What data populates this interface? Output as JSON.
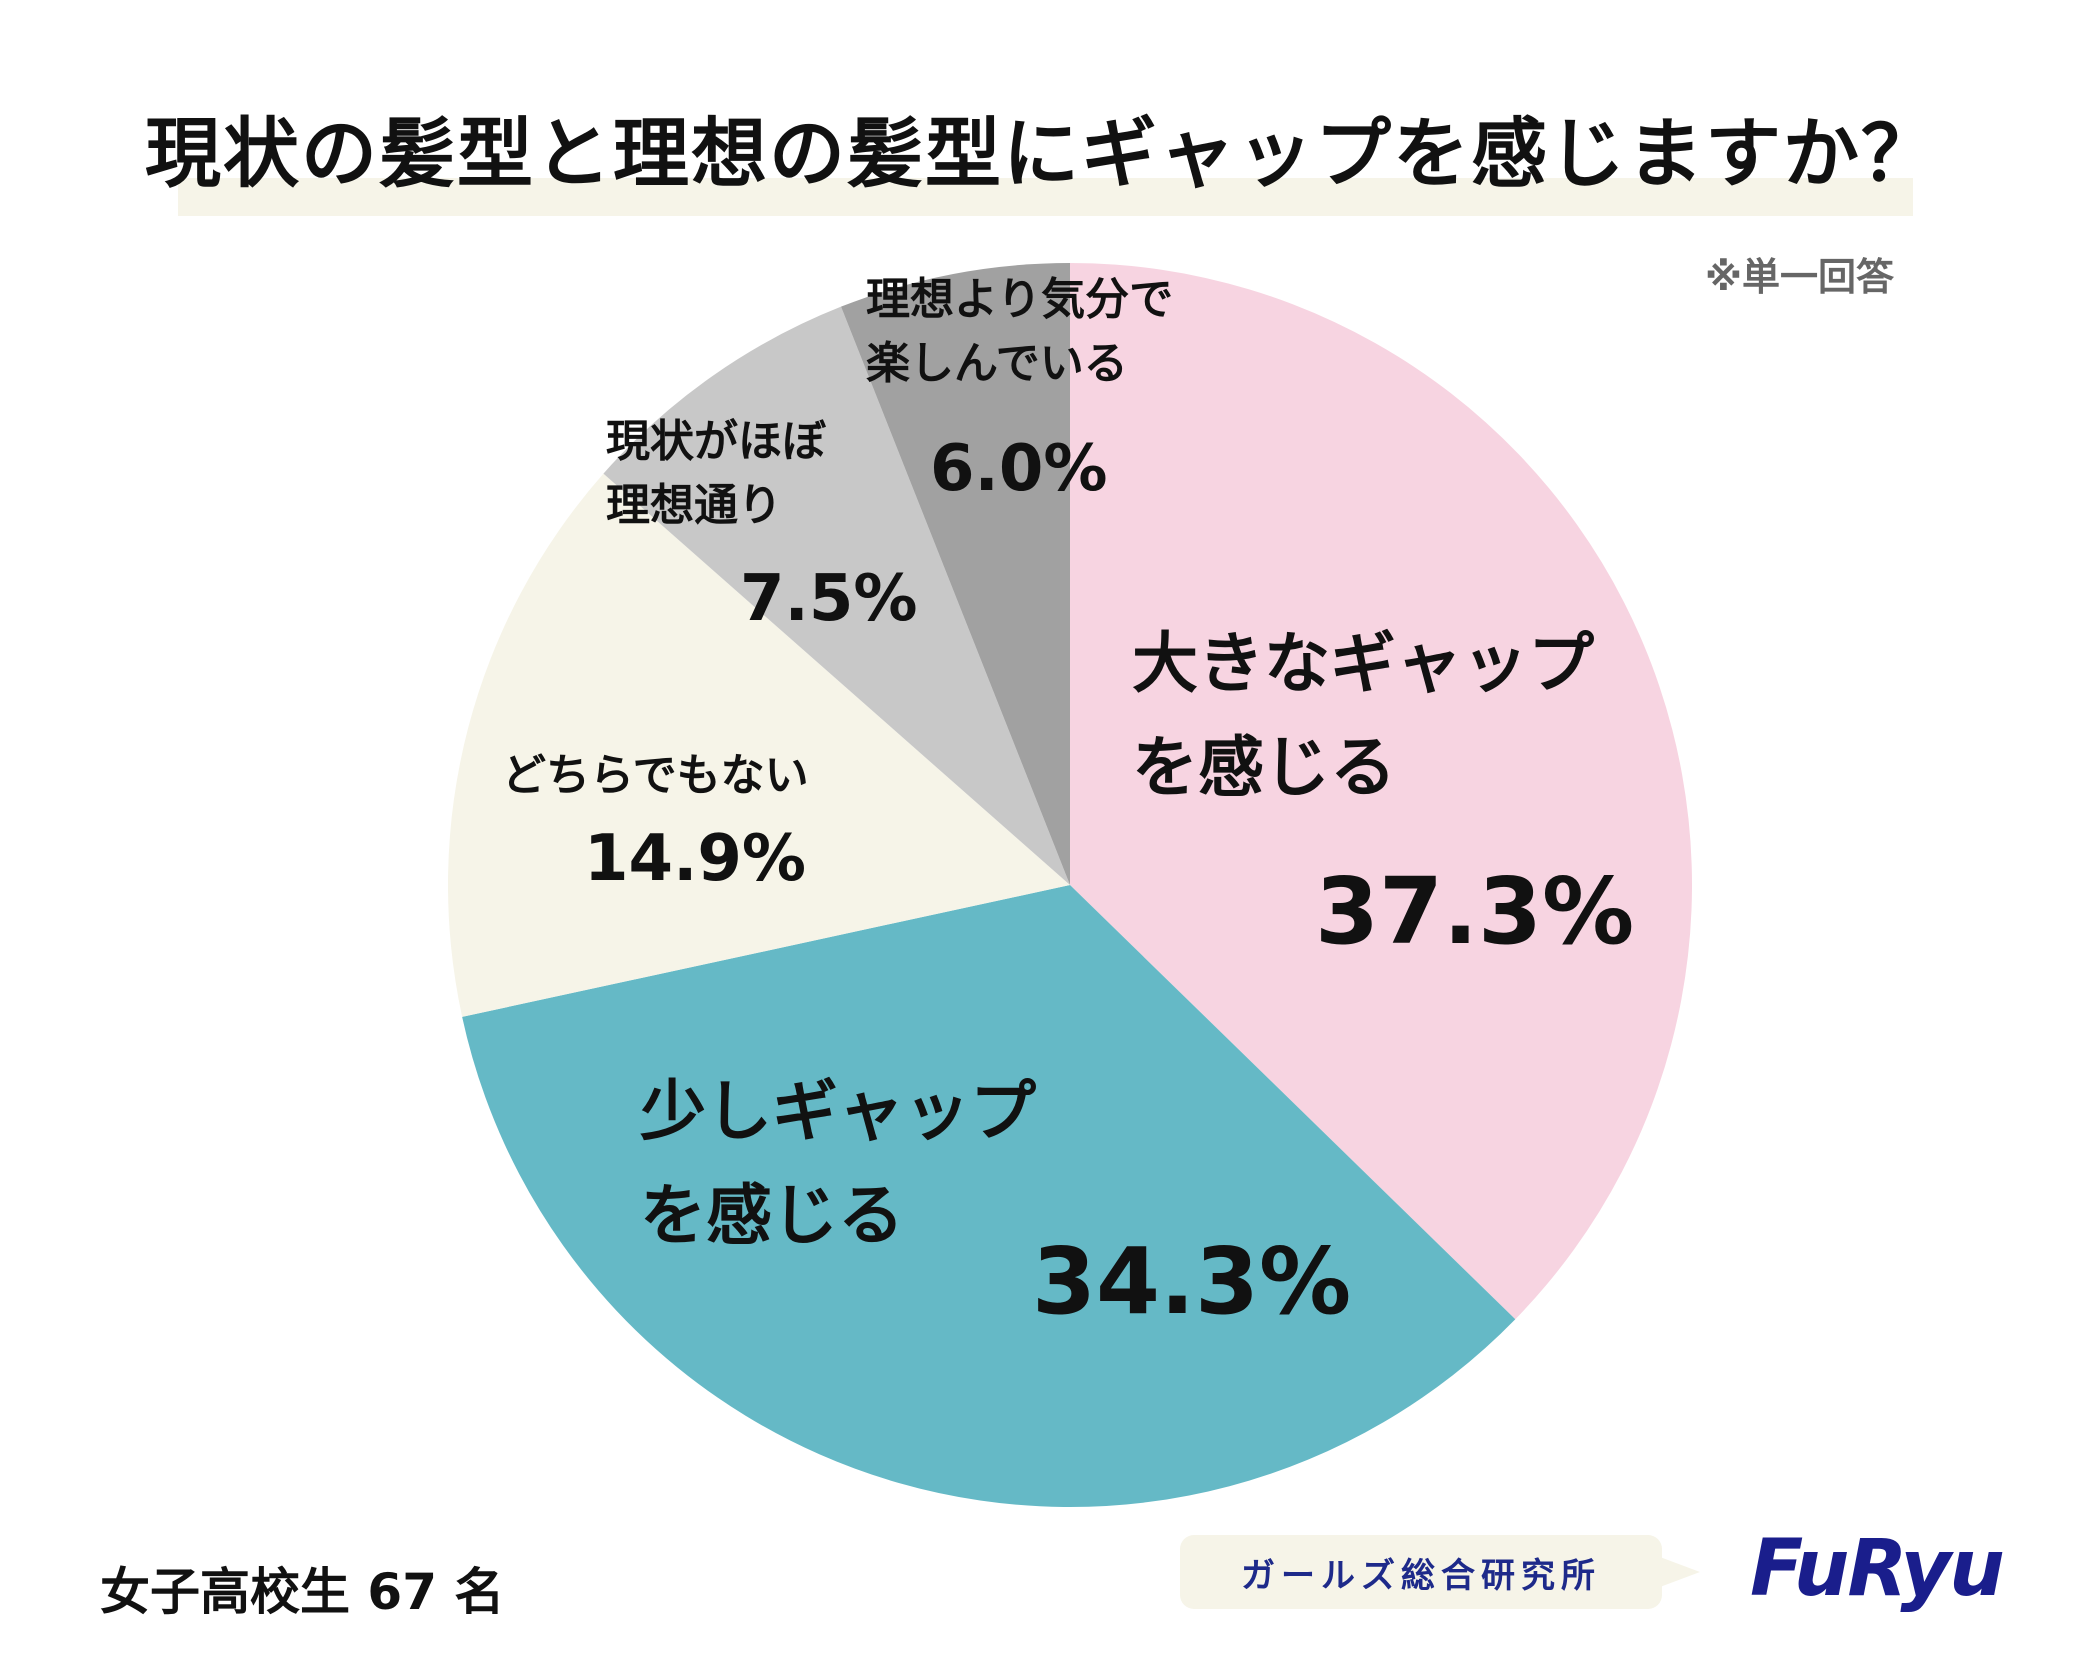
{
  "title": "現状の髪型と理想の髪型にギャップを感じますか？",
  "note": "※単一回答",
  "sample": "女子高校生 67 名",
  "source": "ガールズ総合研究所",
  "brand": "FuRyu",
  "chart_data": {
    "type": "pie",
    "title": "現状の髪型と理想の髪型にギャップを感じますか？",
    "slices": [
      {
        "label": "大きなギャップを感じる",
        "lines": [
          "大きなギャップ",
          "を感じる"
        ],
        "value": 37.3,
        "value_label": "37.3%",
        "color": "#f7d4e1"
      },
      {
        "label": "少しギャップを感じる",
        "lines": [
          "少しギャップ",
          "を感じる"
        ],
        "value": 34.3,
        "value_label": "34.3%",
        "color": "#65b9c6"
      },
      {
        "label": "どちらでもない",
        "lines": [
          "どちらでもない"
        ],
        "value": 14.9,
        "value_label": "14.9%",
        "color": "#f6f4e8"
      },
      {
        "label": "現状がほぼ理想通り",
        "lines": [
          "現状がほぼ",
          "理想通り"
        ],
        "value": 7.5,
        "value_label": "7.5%",
        "color": "#c8c8c8"
      },
      {
        "label": "理想より気分で楽しんでいる",
        "lines": [
          "理想より気分で",
          "楽しんでいる"
        ],
        "value": 6.0,
        "value_label": "6.0%",
        "color": "#a1a1a1"
      }
    ]
  }
}
